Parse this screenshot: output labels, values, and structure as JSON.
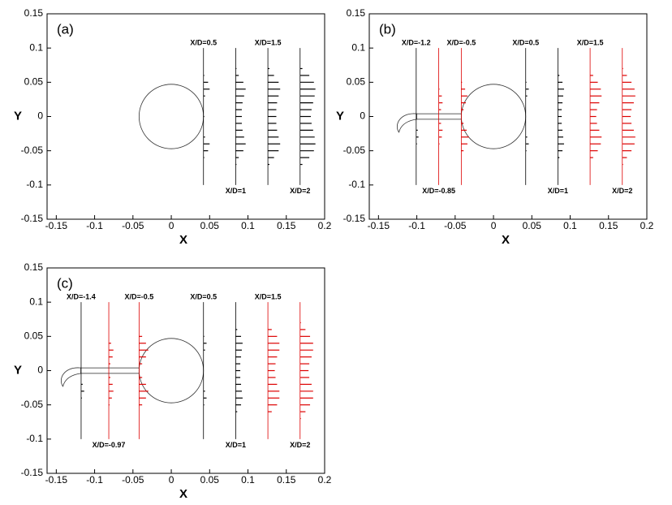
{
  "chart_data": [
    {
      "type": "profile",
      "panel_label": "(a)",
      "xlabel": "X",
      "ylabel": "Y",
      "xlim": [
        -0.162,
        0.2
      ],
      "ylim": [
        -0.15,
        0.15
      ],
      "xticks": [
        -0.15,
        -0.1,
        -0.05,
        0,
        0.05,
        0.1,
        0.15,
        0.2
      ],
      "yticks": [
        -0.15,
        -0.1,
        -0.05,
        0,
        0.05,
        0.1,
        0.15
      ],
      "cylinder": {
        "x": 0,
        "y": 0,
        "r": 0.042
      },
      "profile_y": [
        -0.1,
        -0.09,
        -0.08,
        -0.07,
        -0.06,
        -0.05,
        -0.04,
        -0.03,
        -0.02,
        -0.01,
        0,
        0.01,
        0.02,
        0.03,
        0.04,
        0.05,
        0.06,
        0.07,
        0.08,
        0.09,
        0.1
      ],
      "stations": [
        {
          "label": "X/D=0.5",
          "x": 0.042,
          "color": "#000000",
          "label_position": "top",
          "values": [
            0,
            0,
            0,
            0,
            0.001,
            0.006,
            0.008,
            0.002,
            0,
            0,
            0.001,
            0,
            0,
            0.002,
            0.008,
            0.006,
            0.001,
            0,
            0,
            0,
            0
          ]
        },
        {
          "label": "X/D=1",
          "x": 0.084,
          "color": "#000000",
          "label_position": "bottom",
          "values": [
            0,
            0,
            0,
            0.001,
            0.004,
            0.01,
            0.013,
            0.011,
            0.009,
            0.008,
            0.008,
            0.008,
            0.009,
            0.011,
            0.013,
            0.01,
            0.004,
            0.001,
            0,
            0,
            0
          ]
        },
        {
          "label": "X/D=1.5",
          "x": 0.126,
          "color": "#000000",
          "label_position": "top",
          "values": [
            0,
            0,
            0,
            0.002,
            0.008,
            0.014,
            0.016,
            0.014,
            0.012,
            0.011,
            0.011,
            0.011,
            0.012,
            0.014,
            0.016,
            0.014,
            0.008,
            0.002,
            0,
            0,
            0
          ]
        },
        {
          "label": "X/D=2",
          "x": 0.168,
          "color": "#000000",
          "label_position": "bottom",
          "values": [
            0,
            0,
            0,
            0.003,
            0.012,
            0.018,
            0.02,
            0.019,
            0.017,
            0.015,
            0.014,
            0.015,
            0.017,
            0.019,
            0.02,
            0.018,
            0.012,
            0.003,
            0,
            0,
            0
          ]
        }
      ]
    },
    {
      "type": "profile",
      "panel_label": "(b)",
      "xlabel": "X",
      "ylabel": "Y",
      "xlim": [
        -0.162,
        0.2
      ],
      "ylim": [
        -0.15,
        0.15
      ],
      "xticks": [
        -0.15,
        -0.1,
        -0.05,
        0,
        0.05,
        0.1,
        0.15,
        0.2
      ],
      "yticks": [
        -0.15,
        -0.1,
        -0.05,
        0,
        0.05,
        0.1,
        0.15
      ],
      "cylinder": {
        "x": 0,
        "y": 0,
        "r": 0.042
      },
      "plate": {
        "x0": -0.1,
        "x1": -0.042,
        "y0": -0.004,
        "y1": 0.004
      },
      "profile_y": [
        -0.1,
        -0.09,
        -0.08,
        -0.07,
        -0.06,
        -0.05,
        -0.04,
        -0.03,
        -0.02,
        -0.01,
        0,
        0.01,
        0.02,
        0.03,
        0.04,
        0.05,
        0.06,
        0.07,
        0.08,
        0.09,
        0.1
      ],
      "stations": [
        {
          "label": "X/D=-1.2",
          "x": -0.1008,
          "color": "#000000",
          "label_position": "top",
          "values": [
            0,
            0,
            0,
            0,
            0,
            0,
            0.001,
            0.003,
            0.002,
            0,
            0,
            0,
            0,
            0,
            0,
            0,
            0,
            0,
            0,
            0,
            0
          ]
        },
        {
          "label": "X/D=-0.85",
          "x": -0.0714,
          "color": "#dd0000",
          "label_position": "bottom",
          "values": [
            0,
            0,
            0,
            0,
            0,
            0,
            0.001,
            0.004,
            0.005,
            0.003,
            0,
            0.003,
            0.005,
            0.004,
            0.001,
            0,
            0,
            0,
            0,
            0,
            0
          ]
        },
        {
          "label": "X/D=-0.5",
          "x": -0.042,
          "color": "#dd0000",
          "label_position": "top",
          "values": [
            0,
            0,
            0,
            0,
            0,
            0.003,
            0.008,
            0.01,
            0.007,
            0.003,
            0,
            0.003,
            0.006,
            0.008,
            0.005,
            0.001,
            0,
            0,
            0,
            0,
            0
          ]
        },
        {
          "label": "X/D=0.5",
          "x": 0.042,
          "color": "#000000",
          "label_position": "top",
          "values": [
            0,
            0,
            0,
            0,
            0,
            0.001,
            0.004,
            0.002,
            0,
            0,
            0,
            0,
            0,
            0.002,
            0.004,
            0.001,
            0,
            0,
            0,
            0,
            0
          ]
        },
        {
          "label": "X/D=1",
          "x": 0.084,
          "color": "#000000",
          "label_position": "bottom",
          "values": [
            0,
            0,
            0,
            0,
            0.002,
            0.006,
            0.008,
            0.007,
            0.006,
            0.005,
            0.005,
            0.005,
            0.006,
            0.007,
            0.008,
            0.006,
            0.002,
            0,
            0,
            0,
            0
          ]
        },
        {
          "label": "X/D=1.5",
          "x": 0.126,
          "color": "#dd0000",
          "label_position": "top",
          "values": [
            0,
            0,
            0,
            0,
            0.004,
            0.01,
            0.014,
            0.015,
            0.012,
            0.009,
            0.008,
            0.009,
            0.012,
            0.015,
            0.014,
            0.01,
            0.004,
            0,
            0,
            0,
            0
          ]
        },
        {
          "label": "X/D=2",
          "x": 0.168,
          "color": "#dd0000",
          "label_position": "bottom",
          "values": [
            0,
            0,
            0,
            0.001,
            0.006,
            0.012,
            0.016,
            0.017,
            0.015,
            0.012,
            0.011,
            0.012,
            0.015,
            0.017,
            0.016,
            0.012,
            0.006,
            0.001,
            0,
            0,
            0
          ]
        }
      ]
    },
    {
      "type": "profile",
      "panel_label": "(c)",
      "xlabel": "X",
      "ylabel": "Y",
      "xlim": [
        -0.162,
        0.2
      ],
      "ylim": [
        -0.15,
        0.15
      ],
      "xticks": [
        -0.15,
        -0.1,
        -0.05,
        0,
        0.05,
        0.1,
        0.15,
        0.2
      ],
      "yticks": [
        -0.15,
        -0.1,
        -0.05,
        0,
        0.05,
        0.1,
        0.15
      ],
      "cylinder": {
        "x": 0,
        "y": 0,
        "r": 0.042
      },
      "plate": {
        "x0": -0.118,
        "x1": -0.042,
        "y0": -0.004,
        "y1": 0.004
      },
      "profile_y": [
        -0.1,
        -0.09,
        -0.08,
        -0.07,
        -0.06,
        -0.05,
        -0.04,
        -0.03,
        -0.02,
        -0.01,
        0,
        0.01,
        0.02,
        0.03,
        0.04,
        0.05,
        0.06,
        0.07,
        0.08,
        0.09,
        0.1
      ],
      "stations": [
        {
          "label": "X/D=-1.4",
          "x": -0.1176,
          "color": "#000000",
          "label_position": "top",
          "values": [
            0,
            0,
            0,
            0,
            0,
            0,
            0.001,
            0.004,
            0.002,
            0,
            0,
            0,
            0,
            0,
            0,
            0,
            0,
            0,
            0,
            0,
            0
          ]
        },
        {
          "label": "X/D=-0.97",
          "x": -0.0815,
          "color": "#dd0000",
          "label_position": "bottom",
          "values": [
            0,
            0,
            0,
            0,
            0,
            0.001,
            0.004,
            0.006,
            0.005,
            0.002,
            0,
            0.002,
            0.005,
            0.006,
            0.003,
            0,
            0,
            0,
            0,
            0,
            0
          ]
        },
        {
          "label": "X/D=-0.5",
          "x": -0.042,
          "color": "#dd0000",
          "label_position": "top",
          "values": [
            0,
            0,
            0,
            0,
            0,
            0.004,
            0.009,
            0.012,
            0.009,
            0.004,
            0,
            0.004,
            0.009,
            0.012,
            0.009,
            0.004,
            0,
            0,
            0,
            0,
            0
          ]
        },
        {
          "label": "X/D=0.5",
          "x": 0.042,
          "color": "#000000",
          "label_position": "top",
          "values": [
            0,
            0,
            0,
            0,
            0,
            0.001,
            0.004,
            0.002,
            0,
            0,
            0,
            0,
            0,
            0.002,
            0.004,
            0.001,
            0,
            0,
            0,
            0,
            0
          ]
        },
        {
          "label": "X/D=1",
          "x": 0.084,
          "color": "#000000",
          "label_position": "bottom",
          "values": [
            0,
            0,
            0,
            0,
            0.002,
            0.007,
            0.009,
            0.008,
            0.007,
            0.006,
            0.006,
            0.006,
            0.007,
            0.008,
            0.009,
            0.007,
            0.002,
            0,
            0,
            0,
            0
          ]
        },
        {
          "label": "X/D=1.5",
          "x": 0.126,
          "color": "#dd0000",
          "label_position": "top",
          "values": [
            0,
            0,
            0,
            0,
            0.005,
            0.012,
            0.015,
            0.015,
            0.012,
            0.01,
            0.009,
            0.01,
            0.012,
            0.015,
            0.015,
            0.012,
            0.005,
            0,
            0,
            0,
            0
          ]
        },
        {
          "label": "X/D=2",
          "x": 0.168,
          "color": "#dd0000",
          "label_position": "bottom",
          "values": [
            0,
            0,
            0,
            0.001,
            0.007,
            0.013,
            0.017,
            0.017,
            0.015,
            0.012,
            0.011,
            0.012,
            0.015,
            0.017,
            0.017,
            0.013,
            0.007,
            0.001,
            0,
            0,
            0
          ]
        }
      ]
    }
  ]
}
